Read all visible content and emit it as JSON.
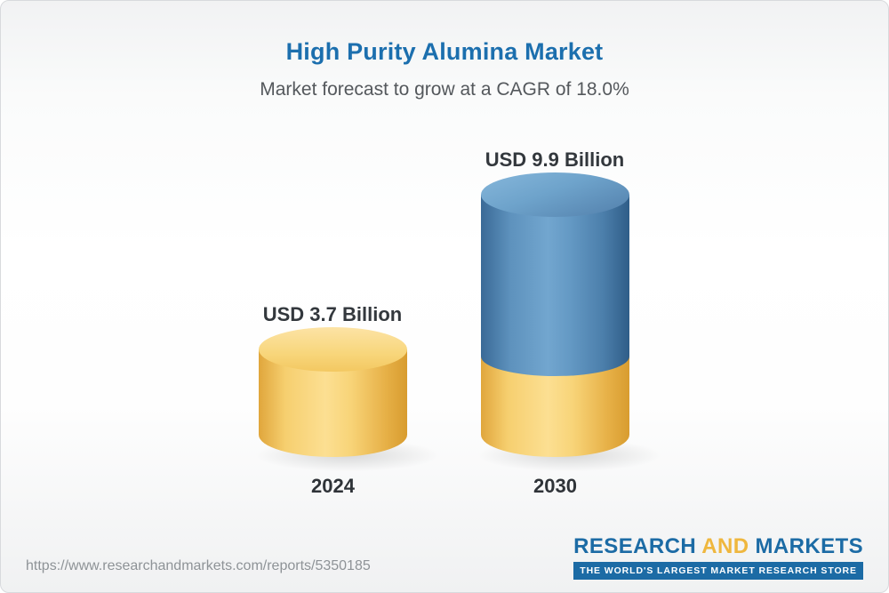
{
  "header": {
    "title": "High Purity Alumina Market",
    "subtitle": "Market forecast to grow at a CAGR of 18.0%"
  },
  "chart_data": {
    "type": "bar",
    "title": "High Purity Alumina Market",
    "subtitle": "Market forecast to grow at a CAGR of 18.0%",
    "cagr": "18.0%",
    "categories": [
      "2024",
      "2030"
    ],
    "values": [
      3.7,
      9.9
    ],
    "unit": "USD Billion",
    "value_labels": [
      "USD 3.7 Billion",
      "USD 9.9 Billion"
    ],
    "legend_position": "none",
    "grid": false,
    "colors": {
      "bar_2024": "#f6cf6f",
      "bar_2030_growth": "#5e92bd",
      "bar_2030_base": "#f6cf6f",
      "title_text": "#1c6fae",
      "subtitle_text": "#54585c"
    }
  },
  "footer": {
    "url": "https://www.researchandmarkets.com/reports/5350185",
    "logo": {
      "part1": "RESEARCH",
      "part2": "AND",
      "part3": "MARKETS",
      "tagline": "THE WORLD'S LARGEST MARKET RESEARCH STORE"
    }
  }
}
